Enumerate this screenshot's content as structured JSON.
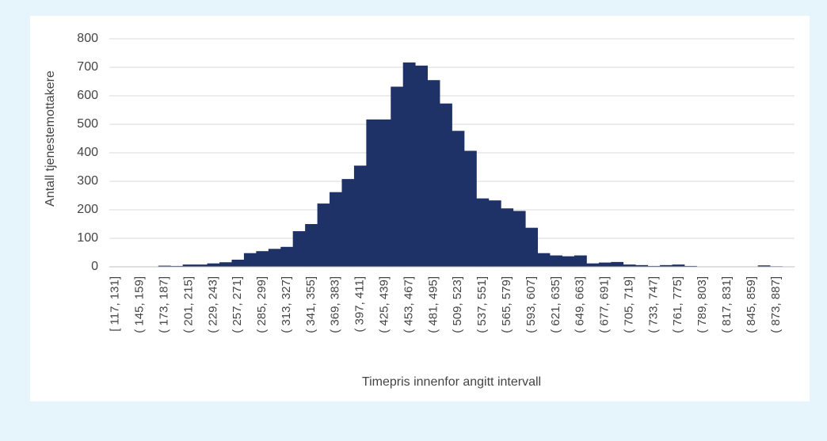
{
  "chart_data": {
    "type": "bar",
    "ylabel": "Antall tjenestemottakere",
    "xlabel": "Timepris innenfor angitt intervall",
    "categories": [
      "[ 117, 131]",
      null,
      "( 145, 159]",
      null,
      "( 173, 187]",
      null,
      "( 201, 215]",
      null,
      "( 229, 243]",
      null,
      "( 257, 271]",
      null,
      "( 285, 299]",
      null,
      "( 313, 327]",
      null,
      "( 341, 355]",
      null,
      "( 369, 383]",
      null,
      "( 397, 411]",
      null,
      "( 425, 439]",
      null,
      "( 453, 467]",
      null,
      "( 481, 495]",
      null,
      "( 509, 523]",
      null,
      "( 537, 551]",
      null,
      "( 565, 579]",
      null,
      "( 593, 607]",
      null,
      "( 621, 635]",
      null,
      "( 649, 663]",
      null,
      "( 677, 691]",
      null,
      "( 705, 719]",
      null,
      "( 733, 747]",
      null,
      "( 761, 775]",
      null,
      "( 789, 803]",
      null,
      "( 817, 831]",
      null,
      "( 845, 859]",
      null,
      "( 873, 887]",
      null
    ],
    "values": [
      0,
      0,
      1,
      1,
      4,
      3,
      8,
      8,
      12,
      16,
      25,
      48,
      55,
      63,
      70,
      125,
      150,
      222,
      262,
      308,
      355,
      517,
      517,
      632,
      717,
      706,
      655,
      573,
      477,
      407,
      240,
      233,
      205,
      196,
      137,
      48,
      40,
      37,
      40,
      12,
      15,
      17,
      8,
      6,
      3,
      6,
      8,
      3,
      1,
      1,
      1,
      1,
      1,
      5,
      2,
      1
    ],
    "color": "#1f3268",
    "ylim": [
      0,
      800
    ],
    "yticks": [
      0,
      100,
      200,
      300,
      400,
      500,
      600,
      700,
      800
    ],
    "grid": true
  }
}
